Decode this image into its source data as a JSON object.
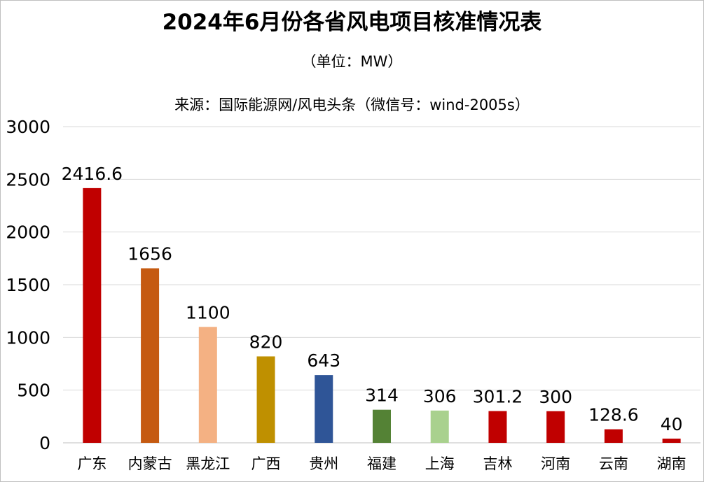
{
  "chart_data": {
    "type": "bar",
    "title": "2024年6月份各省风电项目核准情况表",
    "subtitle": "（单位：MW）",
    "source": "来源：国际能源网/风电头条（微信号：wind-2005s）",
    "xlabel": "",
    "ylabel": "",
    "ylim": [
      0,
      3000
    ],
    "yticks": [
      0,
      500,
      1000,
      1500,
      2000,
      2500,
      3000
    ],
    "grid": true,
    "categories": [
      "广东",
      "内蒙古",
      "黑龙江",
      "广西",
      "贵州",
      "福建",
      "上海",
      "吉林",
      "河南",
      "云南",
      "湖南"
    ],
    "values": [
      2416.6,
      1656,
      1100,
      820,
      643,
      314,
      306,
      301.2,
      300,
      128.6,
      40
    ],
    "data_labels": [
      "2416.6",
      "1656",
      "1100",
      "820",
      "643",
      "314",
      "306",
      "301.2",
      "300",
      "128.6",
      "40"
    ],
    "colors": [
      "#C00000",
      "#C55A11",
      "#F4B183",
      "#BF9000",
      "#2F5597",
      "#548235",
      "#A9D18E",
      "#C00000",
      "#C00000",
      "#C00000",
      "#C00000"
    ]
  }
}
